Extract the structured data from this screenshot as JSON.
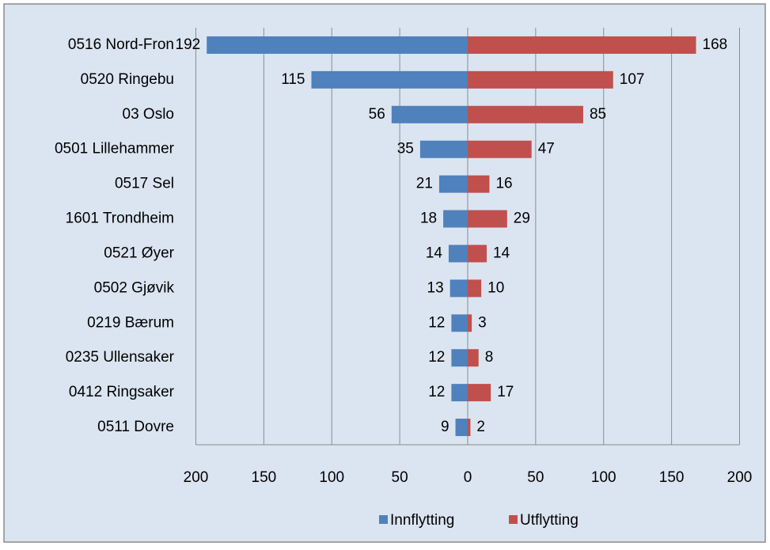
{
  "chart_data": {
    "type": "butterfly",
    "categories": [
      "0516 Nord-Fron",
      "0520 Ringebu",
      "03 Oslo",
      "0501 Lillehammer",
      "0517 Sel",
      "1601 Trondheim",
      "0521 Øyer",
      "0502 Gjøvik",
      "0219 Bærum",
      "0235 Ullensaker",
      "0412 Ringsaker",
      "0511 Dovre"
    ],
    "series": [
      {
        "name": "Innflytting",
        "color": "#4f81bd",
        "values": [
          192,
          115,
          56,
          35,
          21,
          18,
          14,
          13,
          12,
          12,
          12,
          9
        ]
      },
      {
        "name": "Utflytting",
        "color": "#c0504d",
        "values": [
          168,
          107,
          85,
          47,
          16,
          29,
          14,
          10,
          3,
          8,
          17,
          2
        ]
      }
    ],
    "xlim": [
      0,
      200
    ],
    "xticks": [
      0,
      50,
      100,
      150,
      200
    ],
    "grid": true,
    "legend": "bottom"
  }
}
